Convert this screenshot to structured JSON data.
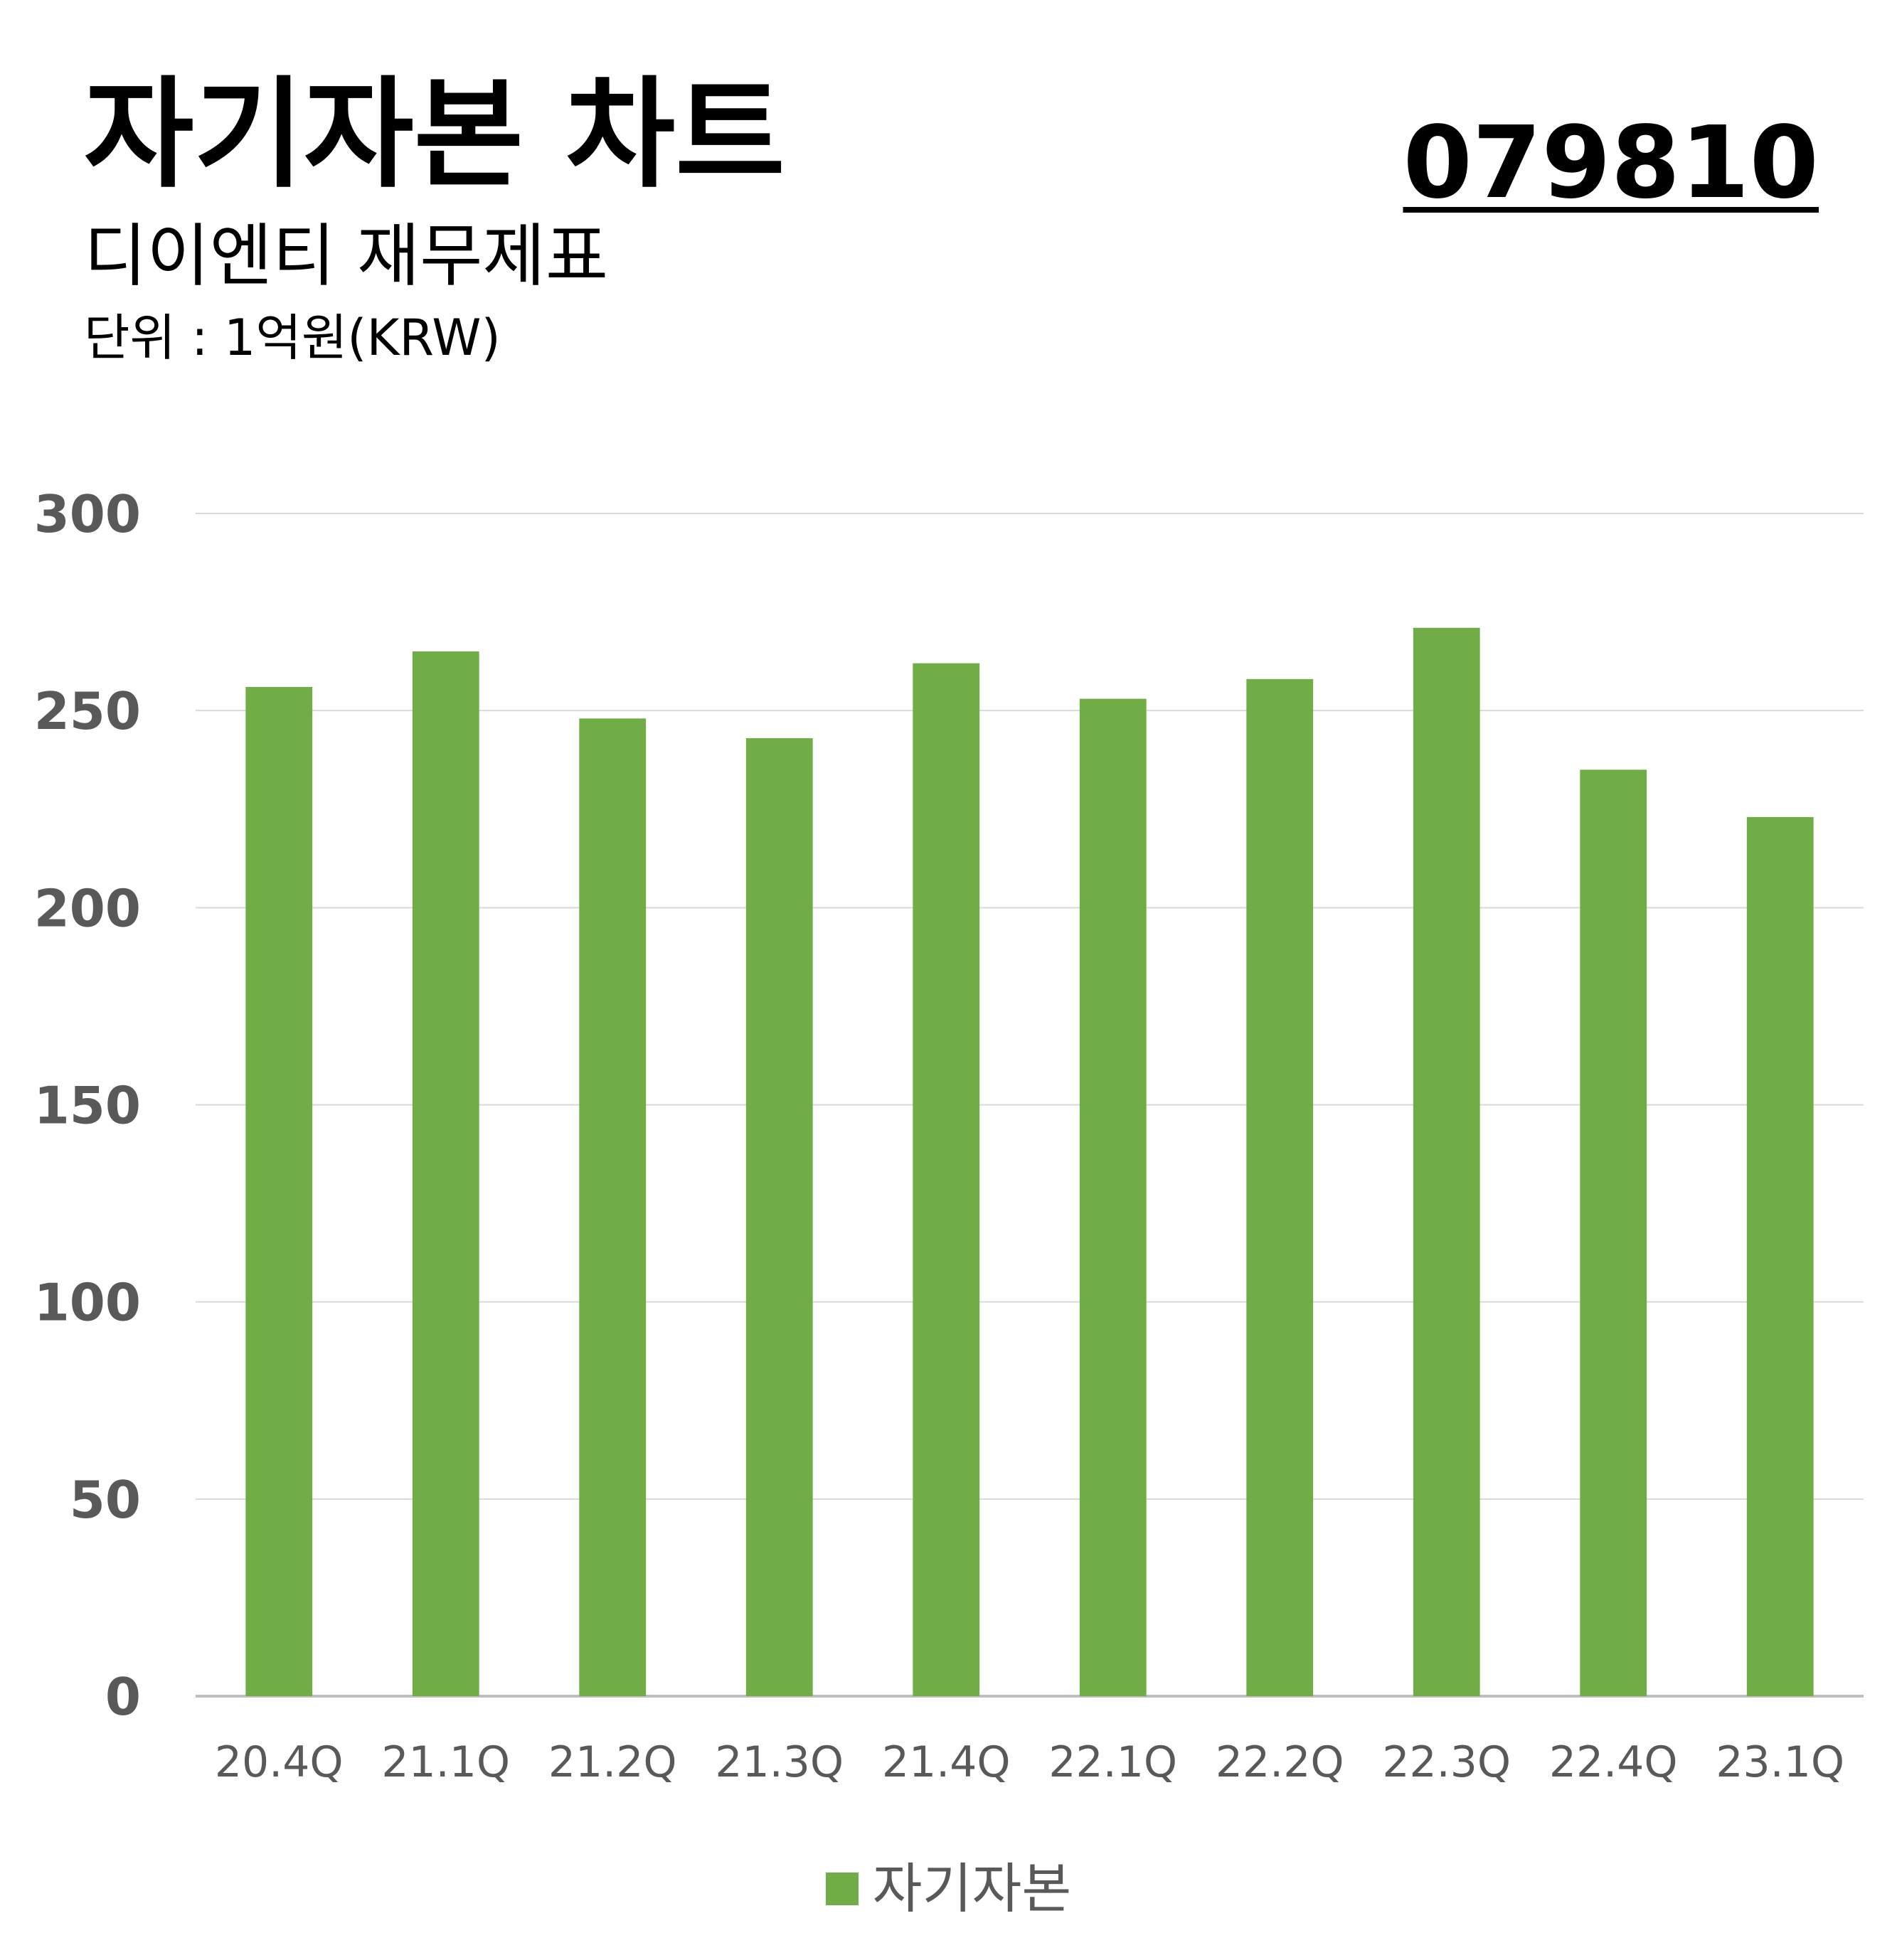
{
  "header": {
    "title": "자기자본 차트",
    "subtitle": "디이엔티 재무제표",
    "unit": "단위 : 1억원(KRW)",
    "code": "079810"
  },
  "colors": {
    "bar": "#70AD47",
    "grid": "#D9D9D9",
    "axis": "#BFBFBF",
    "tick": "#595959"
  },
  "chart_data": {
    "type": "bar",
    "categories": [
      "20.4Q",
      "21.1Q",
      "21.2Q",
      "21.3Q",
      "21.4Q",
      "22.1Q",
      "22.2Q",
      "22.3Q",
      "22.4Q",
      "23.1Q"
    ],
    "series": [
      {
        "name": "자기자본",
        "values": [
          256,
          265,
          248,
          243,
          262,
          253,
          258,
          271,
          235,
          223
        ]
      }
    ],
    "yticks": [
      0,
      50,
      100,
      150,
      200,
      250,
      300
    ],
    "ylim": [
      0,
      300
    ],
    "grid": true,
    "legend": "bottom"
  }
}
